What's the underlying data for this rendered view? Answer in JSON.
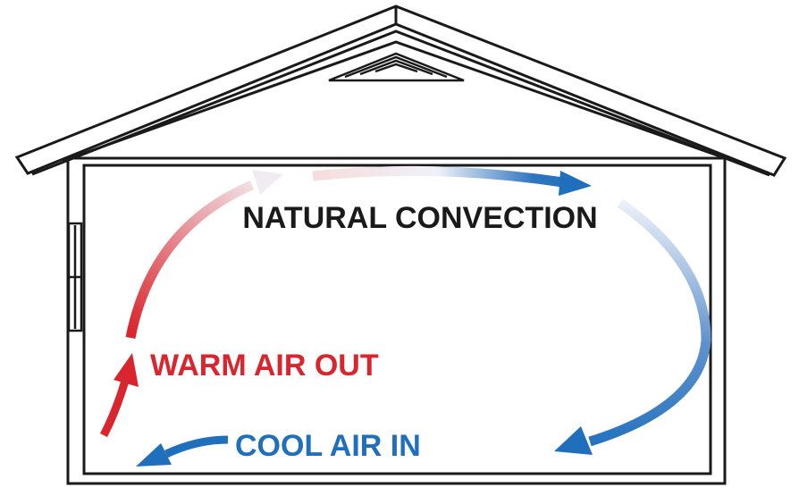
{
  "diagram": {
    "title": "NATURAL CONVECTION",
    "warm_label": "WARM AIR OUT",
    "cool_label": "COOL AIR IN"
  },
  "colors": {
    "outline": "#1a1a1a",
    "background": "#ffffff",
    "warm": "#d9252e",
    "cool": "#1f6fbd",
    "faint": "#f1e6e9"
  }
}
